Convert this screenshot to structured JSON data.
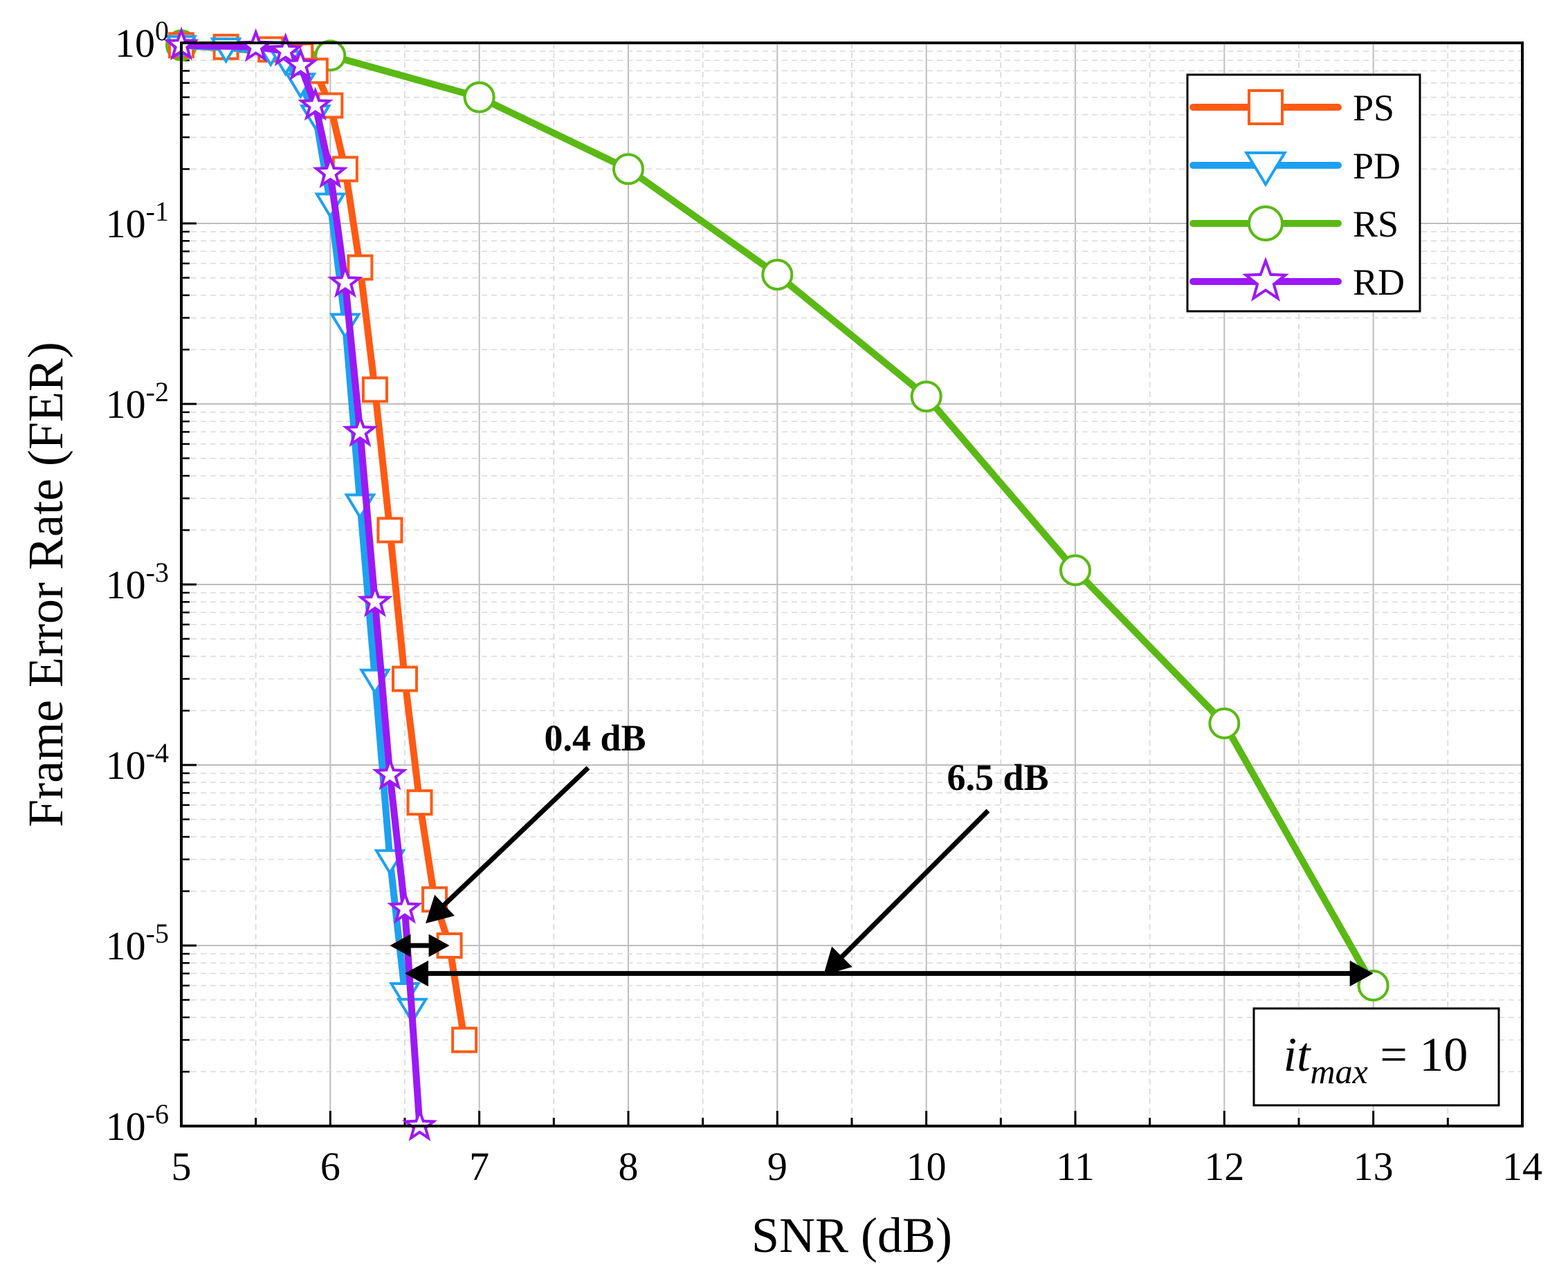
{
  "chart_data": {
    "type": "line",
    "title": "",
    "xlabel": "SNR (dB)",
    "ylabel": "Frame Error Rate (FER)",
    "xlim": [
      5,
      14
    ],
    "ylim": [
      1e-06,
      1
    ],
    "yscale": "log",
    "x_ticks": [
      "5",
      "6",
      "7",
      "8",
      "9",
      "10",
      "11",
      "12",
      "13",
      "14"
    ],
    "y_ticks": [
      {
        "base": "10",
        "exp": "0"
      },
      {
        "base": "10",
        "exp": "-1"
      },
      {
        "base": "10",
        "exp": "-2"
      },
      {
        "base": "10",
        "exp": "-3"
      },
      {
        "base": "10",
        "exp": "-4"
      },
      {
        "base": "10",
        "exp": "-5"
      },
      {
        "base": "10",
        "exp": "-6"
      }
    ],
    "grid": true,
    "legend_position": "top-right",
    "series": [
      {
        "name": "PS",
        "color": "#ff5a14",
        "marker": "square",
        "x": [
          5.0,
          5.3,
          5.6,
          5.8,
          5.9,
          6.0,
          6.1,
          6.2,
          6.3,
          6.4,
          6.5,
          6.6,
          6.7,
          6.8,
          6.9
        ],
        "y": [
          0.97,
          0.95,
          0.92,
          0.85,
          0.7,
          0.45,
          0.2,
          0.057,
          0.012,
          0.002,
          0.0003,
          6.2e-05,
          1.8e-05,
          1e-05,
          3e-06
        ]
      },
      {
        "name": "PD",
        "color": "#1ea0f0",
        "marker": "triangle-down",
        "x": [
          5.0,
          5.3,
          5.6,
          5.7,
          5.8,
          5.9,
          6.0,
          6.1,
          6.2,
          6.3,
          6.4,
          6.5,
          6.55
        ],
        "y": [
          0.97,
          0.94,
          0.9,
          0.8,
          0.6,
          0.4,
          0.13,
          0.028,
          0.0028,
          0.0003,
          3e-05,
          5.5e-06,
          4.5e-06
        ]
      },
      {
        "name": "RS",
        "color": "#5ab914",
        "marker": "circle",
        "x": [
          5,
          6,
          7,
          8,
          9,
          10,
          11,
          12,
          13
        ],
        "y": [
          0.97,
          0.85,
          0.5,
          0.2,
          0.052,
          0.011,
          0.0012,
          0.00017,
          6e-06
        ]
      },
      {
        "name": "RD",
        "color": "#9b19f5",
        "marker": "star",
        "x": [
          5.0,
          5.5,
          5.7,
          5.8,
          5.9,
          6.0,
          6.1,
          6.2,
          6.3,
          6.4,
          6.5,
          6.6
        ],
        "y": [
          0.97,
          0.95,
          0.9,
          0.75,
          0.45,
          0.19,
          0.047,
          0.007,
          0.0008,
          8.8e-05,
          1.6e-05,
          1e-06
        ]
      }
    ],
    "annotations": [
      {
        "text": "0.4 dB",
        "arrow_between_x": [
          6.4,
          6.8
        ],
        "arrow_y": 1e-05
      },
      {
        "text": "6.5 dB",
        "arrow_between_x": [
          6.5,
          13.0
        ],
        "arrow_y": 7e-06
      }
    ],
    "text_box": {
      "main": "it",
      "sub": "max",
      "rest": " = 10"
    }
  }
}
